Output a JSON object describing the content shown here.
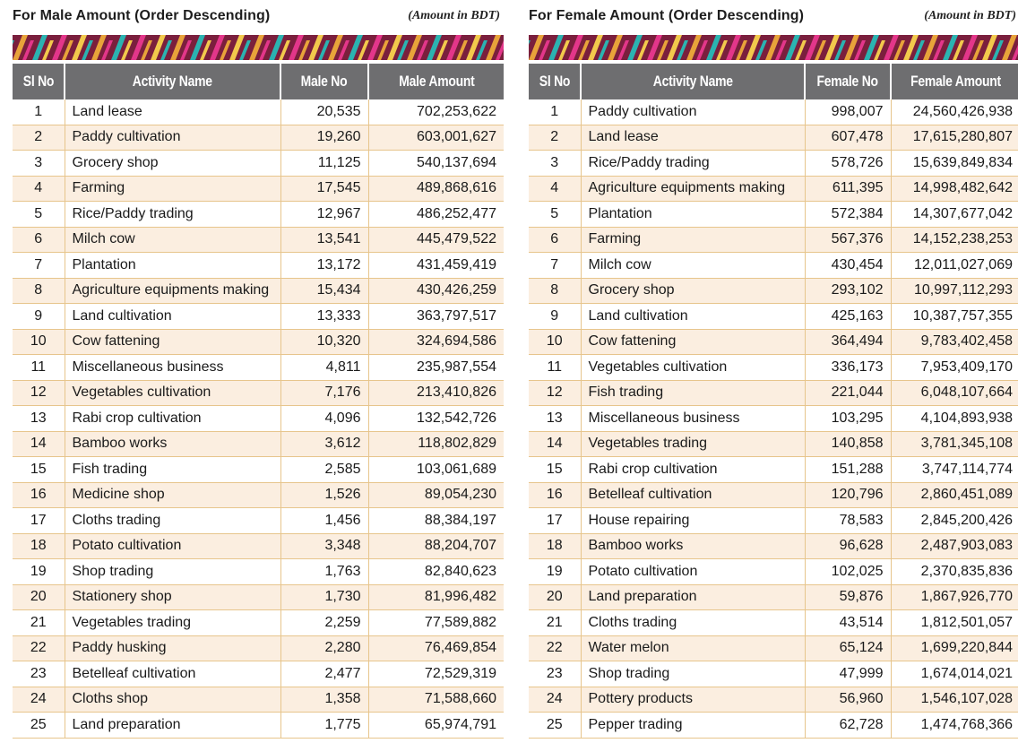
{
  "male": {
    "title": "For Male Amount (Order Descending)",
    "unit_note": "(Amount in BDT)",
    "headers": [
      "Sl No",
      "Activity Name",
      "Male No",
      "Male Amount"
    ],
    "rows": [
      {
        "sl": "1",
        "name": "Land lease",
        "count": "20,535",
        "amount": "702,253,622"
      },
      {
        "sl": "2",
        "name": "Paddy cultivation",
        "count": "19,260",
        "amount": "603,001,627"
      },
      {
        "sl": "3",
        "name": "Grocery shop",
        "count": "11,125",
        "amount": "540,137,694"
      },
      {
        "sl": "4",
        "name": "Farming",
        "count": "17,545",
        "amount": "489,868,616"
      },
      {
        "sl": "5",
        "name": "Rice/Paddy trading",
        "count": "12,967",
        "amount": "486,252,477"
      },
      {
        "sl": "6",
        "name": "Milch cow",
        "count": "13,541",
        "amount": "445,479,522"
      },
      {
        "sl": "7",
        "name": "Plantation",
        "count": "13,172",
        "amount": "431,459,419"
      },
      {
        "sl": "8",
        "name": "Agriculture equipments making",
        "count": "15,434",
        "amount": "430,426,259"
      },
      {
        "sl": "9",
        "name": "Land cultivation",
        "count": "13,333",
        "amount": "363,797,517"
      },
      {
        "sl": "10",
        "name": "Cow fattening",
        "count": "10,320",
        "amount": "324,694,586"
      },
      {
        "sl": "11",
        "name": "Miscellaneous business",
        "count": "4,811",
        "amount": "235,987,554"
      },
      {
        "sl": "12",
        "name": "Vegetables cultivation",
        "count": "7,176",
        "amount": "213,410,826"
      },
      {
        "sl": "13",
        "name": "Rabi crop cultivation",
        "count": "4,096",
        "amount": "132,542,726"
      },
      {
        "sl": "14",
        "name": "Bamboo works",
        "count": "3,612",
        "amount": "118,802,829"
      },
      {
        "sl": "15",
        "name": "Fish trading",
        "count": "2,585",
        "amount": "103,061,689"
      },
      {
        "sl": "16",
        "name": "Medicine shop",
        "count": "1,526",
        "amount": "89,054,230"
      },
      {
        "sl": "17",
        "name": "Cloths trading",
        "count": "1,456",
        "amount": "88,384,197"
      },
      {
        "sl": "18",
        "name": "Potato cultivation",
        "count": "3,348",
        "amount": "88,204,707"
      },
      {
        "sl": "19",
        "name": "Shop trading",
        "count": "1,763",
        "amount": "82,840,623"
      },
      {
        "sl": "20",
        "name": "Stationery shop",
        "count": "1,730",
        "amount": "81,996,482"
      },
      {
        "sl": "21",
        "name": "Vegetables trading",
        "count": "2,259",
        "amount": "77,589,882"
      },
      {
        "sl": "22",
        "name": "Paddy husking",
        "count": "2,280",
        "amount": "76,469,854"
      },
      {
        "sl": "23",
        "name": "Betelleaf cultivation",
        "count": "2,477",
        "amount": "72,529,319"
      },
      {
        "sl": "24",
        "name": "Cloths shop",
        "count": "1,358",
        "amount": "71,588,660"
      },
      {
        "sl": "25",
        "name": "Land preparation",
        "count": "1,775",
        "amount": "65,974,791"
      }
    ]
  },
  "female": {
    "title": "For Female Amount (Order Descending)",
    "unit_note": "(Amount in BDT)",
    "headers": [
      "Sl No",
      "Activity Name",
      "Female No",
      "Female Amount"
    ],
    "rows": [
      {
        "sl": "1",
        "name": "Paddy cultivation",
        "count": "998,007",
        "amount": "24,560,426,938"
      },
      {
        "sl": "2",
        "name": "Land lease",
        "count": "607,478",
        "amount": "17,615,280,807"
      },
      {
        "sl": "3",
        "name": "Rice/Paddy trading",
        "count": "578,726",
        "amount": "15,639,849,834"
      },
      {
        "sl": "4",
        "name": "Agriculture equipments making",
        "count": "611,395",
        "amount": "14,998,482,642"
      },
      {
        "sl": "5",
        "name": "Plantation",
        "count": "572,384",
        "amount": "14,307,677,042"
      },
      {
        "sl": "6",
        "name": "Farming",
        "count": "567,376",
        "amount": "14,152,238,253"
      },
      {
        "sl": "7",
        "name": "Milch cow",
        "count": "430,454",
        "amount": "12,011,027,069"
      },
      {
        "sl": "8",
        "name": "Grocery shop",
        "count": "293,102",
        "amount": "10,997,112,293"
      },
      {
        "sl": "9",
        "name": "Land cultivation",
        "count": "425,163",
        "amount": "10,387,757,355"
      },
      {
        "sl": "10",
        "name": "Cow fattening",
        "count": "364,494",
        "amount": "9,783,402,458"
      },
      {
        "sl": "11",
        "name": "Vegetables cultivation",
        "count": "336,173",
        "amount": "7,953,409,170"
      },
      {
        "sl": "12",
        "name": "Fish trading",
        "count": "221,044",
        "amount": "6,048,107,664"
      },
      {
        "sl": "13",
        "name": "Miscellaneous business",
        "count": "103,295",
        "amount": "4,104,893,938"
      },
      {
        "sl": "14",
        "name": "Vegetables trading",
        "count": "140,858",
        "amount": "3,781,345,108"
      },
      {
        "sl": "15",
        "name": "Rabi crop cultivation",
        "count": "151,288",
        "amount": "3,747,114,774"
      },
      {
        "sl": "16",
        "name": "Betelleaf cultivation",
        "count": "120,796",
        "amount": "2,860,451,089"
      },
      {
        "sl": "17",
        "name": "House repairing",
        "count": "78,583",
        "amount": "2,845,200,426"
      },
      {
        "sl": "18",
        "name": "Bamboo works",
        "count": "96,628",
        "amount": "2,487,903,083"
      },
      {
        "sl": "19",
        "name": "Potato cultivation",
        "count": "102,025",
        "amount": "2,370,835,836"
      },
      {
        "sl": "20",
        "name": "Land preparation",
        "count": "59,876",
        "amount": "1,867,926,770"
      },
      {
        "sl": "21",
        "name": "Cloths trading",
        "count": "43,514",
        "amount": "1,812,501,057"
      },
      {
        "sl": "22",
        "name": "Water melon",
        "count": "65,124",
        "amount": "1,699,220,844"
      },
      {
        "sl": "23",
        "name": "Shop trading",
        "count": "47,999",
        "amount": "1,674,014,021"
      },
      {
        "sl": "24",
        "name": "Pottery products",
        "count": "56,960",
        "amount": "1,546,107,028"
      },
      {
        "sl": "25",
        "name": "Pepper trading",
        "count": "62,728",
        "amount": "1,474,768,366"
      }
    ]
  },
  "colors": {
    "header_bg": "#6e6e70",
    "row_alt_bg": "#fbeee0",
    "grid_line": "#e7c58c",
    "band_colors": [
      "#7a1f3d",
      "#e8a33a",
      "#2bb3b1",
      "#e3368a",
      "#f2c94c"
    ]
  },
  "decoration": "tribal-stripe-band"
}
